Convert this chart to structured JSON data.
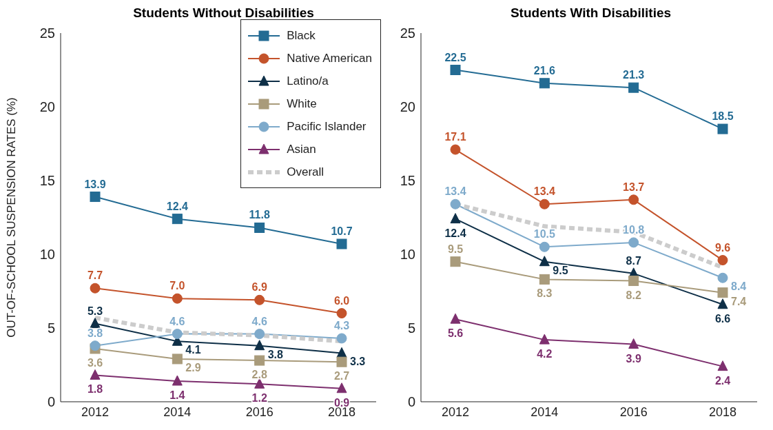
{
  "chart_data": [
    {
      "type": "line",
      "title": "Students Without Disabilities",
      "ylabel": "OUT-OF-SCHOOL SUSPENSION RATES (%)",
      "categories": [
        "2012",
        "2014",
        "2016",
        "2018"
      ],
      "ylim": [
        0,
        25
      ],
      "yticks": [
        0,
        5,
        10,
        15,
        20,
        25
      ],
      "grid": false,
      "legend": "top right",
      "series": [
        {
          "name": "Black",
          "color": "#236b93",
          "marker": "square",
          "values": [
            13.9,
            12.4,
            11.8,
            10.7
          ],
          "value_labels": [
            "13.9",
            "12.4",
            "11.8",
            "10.7"
          ]
        },
        {
          "name": "Native American",
          "color": "#c4532b",
          "marker": "circle",
          "values": [
            7.7,
            7.0,
            6.9,
            6.0
          ],
          "value_labels": [
            "7.7",
            "7.0",
            "6.9",
            "6.0"
          ]
        },
        {
          "name": "Latino/a",
          "color": "#0e2f47",
          "marker": "triangle",
          "values": [
            5.3,
            4.1,
            3.8,
            3.3
          ],
          "value_labels": [
            "5.3",
            "4.1",
            "3.8",
            "3.3"
          ]
        },
        {
          "name": "White",
          "color": "#a99b7b",
          "marker": "square",
          "values": [
            3.6,
            2.9,
            2.8,
            2.7
          ],
          "value_labels": [
            "3.6",
            "2.9",
            "2.8",
            "2.7"
          ]
        },
        {
          "name": "Pacific Islander",
          "color": "#7eaacb",
          "marker": "circle",
          "values": [
            3.8,
            4.6,
            4.6,
            4.3
          ],
          "value_labels": [
            "3.8",
            "4.6",
            "4.6",
            "4.3"
          ]
        },
        {
          "name": "Asian",
          "color": "#7d2f6e",
          "marker": "triangle",
          "values": [
            1.8,
            1.4,
            1.2,
            0.9
          ],
          "value_labels": [
            "1.8",
            "1.4",
            "1.2",
            "0.9"
          ]
        },
        {
          "name": "Overall",
          "color": "#cccccc",
          "marker": "none",
          "line_style": "dashed",
          "values": [
            5.7,
            4.7,
            4.5,
            4.1
          ]
        }
      ]
    },
    {
      "type": "line",
      "title": "Students With Disabilities",
      "categories": [
        "2012",
        "2014",
        "2016",
        "2018"
      ],
      "ylim": [
        0,
        25
      ],
      "yticks": [
        0,
        5,
        10,
        15,
        20,
        25
      ],
      "grid": false,
      "series": [
        {
          "color": "#236b93",
          "marker": "square",
          "values": [
            22.5,
            21.6,
            21.3,
            18.5
          ],
          "value_labels": [
            "22.5",
            "21.6",
            "21.3",
            "18.5"
          ]
        },
        {
          "color": "#c4532b",
          "marker": "circle",
          "values": [
            17.1,
            13.4,
            13.7,
            9.6
          ],
          "value_labels": [
            "17.1",
            "13.4",
            "13.7",
            "9.6"
          ]
        },
        {
          "color": "#0e2f47",
          "marker": "triangle",
          "values": [
            12.4,
            9.5,
            8.7,
            6.6
          ],
          "value_labels": [
            "12.4",
            "9.5",
            "8.7",
            "6.6"
          ]
        },
        {
          "color": "#a99b7b",
          "marker": "square",
          "values": [
            9.5,
            8.3,
            8.2,
            7.4
          ],
          "value_labels": [
            "9.5",
            "8.3",
            "8.2",
            "7.4"
          ]
        },
        {
          "color": "#7eaacb",
          "marker": "circle",
          "values": [
            13.4,
            10.5,
            10.8,
            8.4
          ],
          "value_labels": [
            "13.4",
            "10.5",
            "10.8",
            "8.4"
          ]
        },
        {
          "color": "#7d2f6e",
          "marker": "triangle",
          "values": [
            5.6,
            4.2,
            3.9,
            2.4
          ],
          "value_labels": [
            "5.6",
            "4.2",
            "3.9",
            "2.4"
          ]
        },
        {
          "color": "#cccccc",
          "marker": "none",
          "line_style": "dashed",
          "values": [
            13.4,
            11.9,
            11.5,
            9.1
          ]
        }
      ]
    }
  ]
}
